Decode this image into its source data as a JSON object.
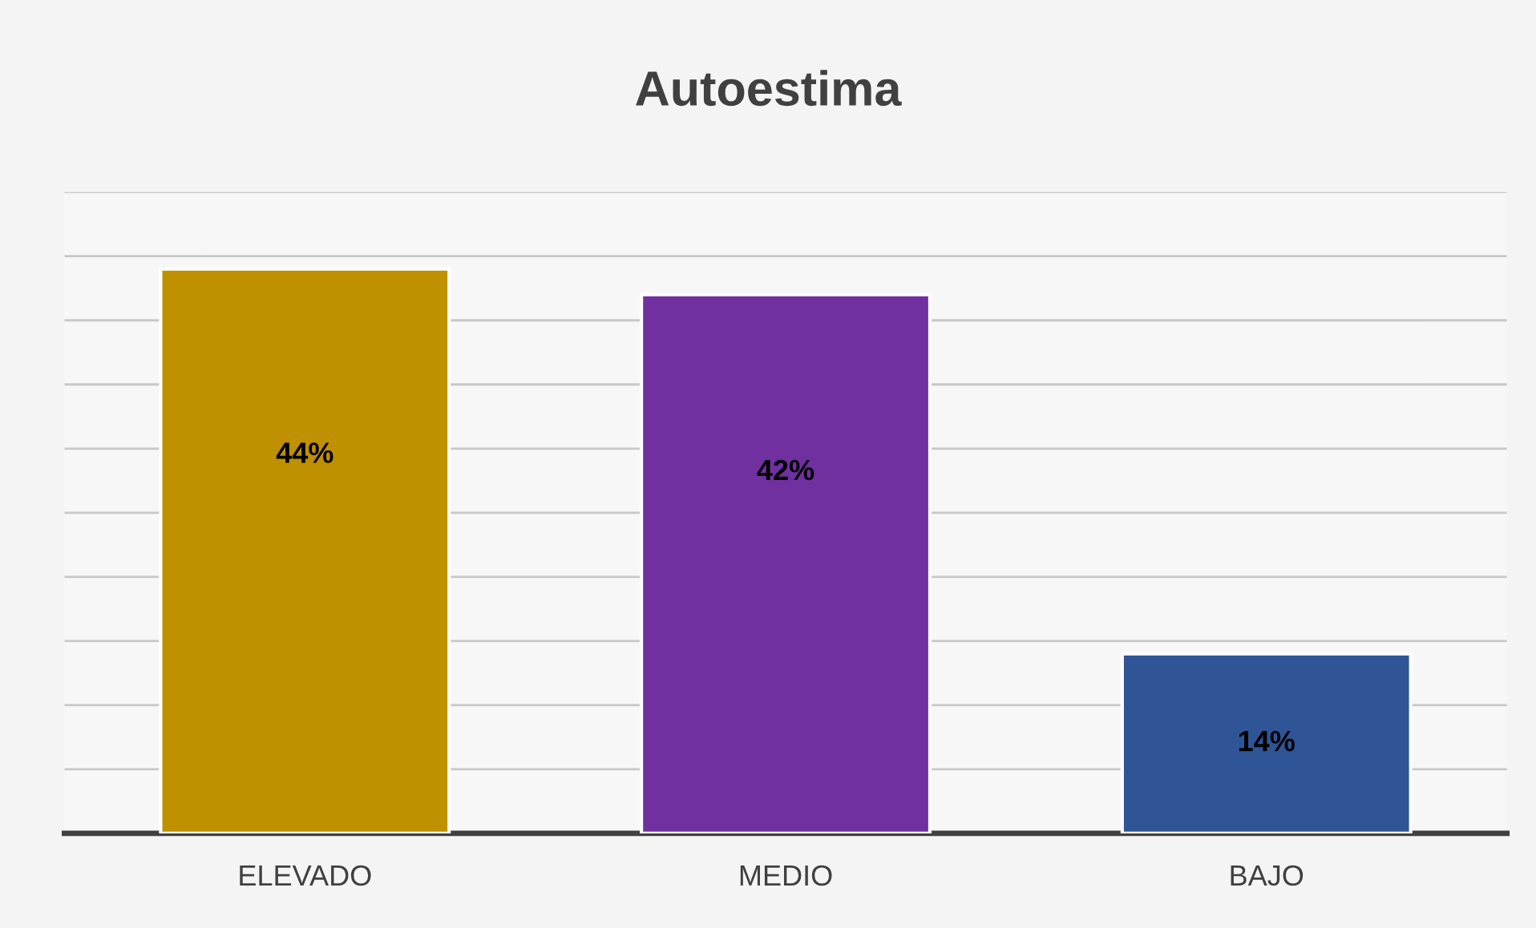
{
  "chart_data": {
    "type": "bar",
    "title": "Autoestima",
    "categories": [
      "ELEVADO",
      "MEDIO",
      "BAJO"
    ],
    "values": [
      44,
      42,
      14
    ],
    "colors": [
      "#bf9000",
      "#7030a0",
      "#2f5597"
    ],
    "value_labels": [
      "44%",
      "42%",
      "14%"
    ],
    "ylim": [
      0,
      50
    ],
    "yticks": [
      {
        "value": 0,
        "label": null
      },
      {
        "value": 5,
        "label": null
      },
      {
        "value": 10,
        "label": null
      },
      {
        "value": 15,
        "label": null
      },
      {
        "value": 20,
        "label": null
      },
      {
        "value": 25,
        "label": null
      },
      {
        "value": 30,
        "label": null
      },
      {
        "value": 35,
        "label": null
      },
      {
        "value": 40,
        "label": null
      },
      {
        "value": 45,
        "label": null
      },
      {
        "value": 50,
        "label": null
      }
    ],
    "tick_labels": "x",
    "grid": "y",
    "legend": false
  }
}
